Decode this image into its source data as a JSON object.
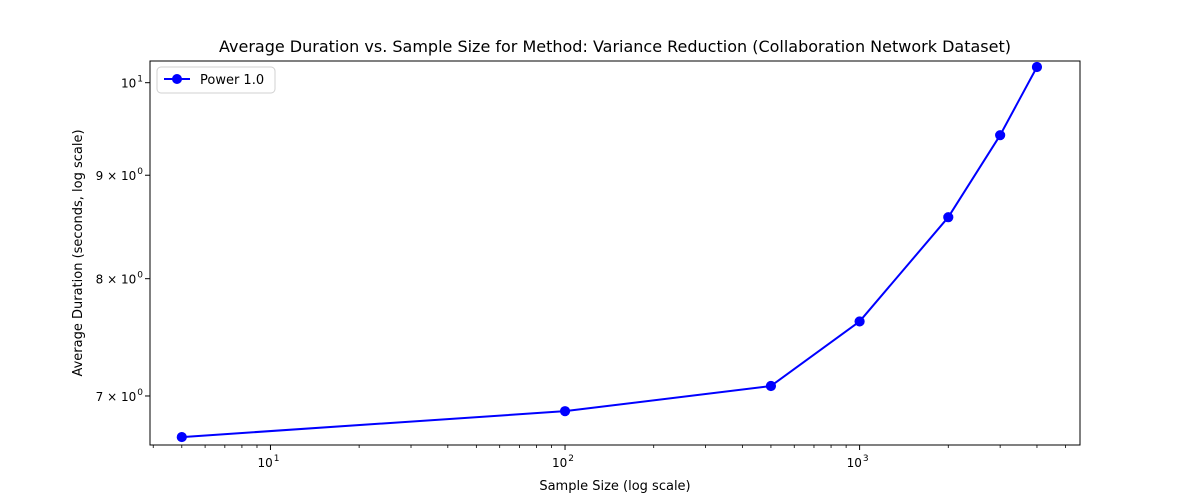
{
  "chart_data": {
    "type": "line",
    "title": "Average Duration vs. Sample Size for Method: Variance Reduction (Collaboration Network Dataset)",
    "xlabel": "Sample Size (log scale)",
    "ylabel": "Average Duration (seconds, log scale)",
    "xscale": "log",
    "yscale": "log",
    "xlim": [
      3.9,
      5600
    ],
    "ylim": [
      6.62,
      10.25
    ],
    "grid": true,
    "legend_position": "top-left",
    "series": [
      {
        "name": "Power 1.0",
        "color": "#0000ff",
        "marker": "circle",
        "x": [
          5,
          100,
          500,
          1000,
          2000,
          3000,
          4000
        ],
        "y": [
          6.68,
          6.88,
          7.08,
          7.62,
          8.58,
          9.42,
          10.18
        ]
      }
    ],
    "x_ticks": [
      {
        "value": 10,
        "base": "10",
        "exp": "1"
      },
      {
        "value": 100,
        "base": "10",
        "exp": "2"
      },
      {
        "value": 1000,
        "base": "10",
        "exp": "3"
      }
    ],
    "y_ticks": [
      {
        "value": 7,
        "label": "7 × 10",
        "exp": "0"
      },
      {
        "value": 8,
        "label": "8 × 10",
        "exp": "0"
      },
      {
        "value": 9,
        "label": "9 × 10",
        "exp": "0"
      },
      {
        "value": 10,
        "label": "10",
        "exp": "1"
      }
    ]
  },
  "colors": {
    "series": "#0000ff",
    "grid": "#b0b0b0",
    "axes": "#000000"
  }
}
